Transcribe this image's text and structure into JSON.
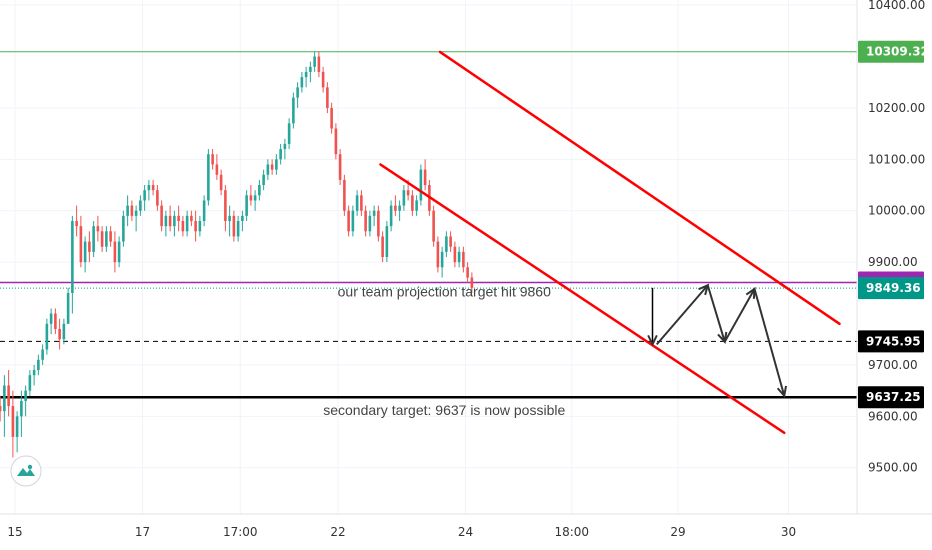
{
  "colors": {
    "up": "#26a69a",
    "down": "#ef5350",
    "channel": "#ff0000",
    "arrows": "#333333",
    "high_line": "#4caf50",
    "target_line": "#9c27b0",
    "last_price": "#009688",
    "grid": "#f0f3fa",
    "axis_text": "#333333"
  },
  "logo": {
    "icon": "tradingview-logo-icon"
  },
  "chart_data": {
    "type": "candlestick",
    "ylim": [
      9410,
      10410
    ],
    "y_ticks": [
      {
        "value": 10400,
        "label": "10400.00"
      },
      {
        "value": 10200,
        "label": "10200.00"
      },
      {
        "value": 10100,
        "label": "10100.00"
      },
      {
        "value": 10000,
        "label": "10000.00"
      },
      {
        "value": 9900,
        "label": "9900.00"
      },
      {
        "value": 9700,
        "label": "9700.00"
      },
      {
        "value": 9600,
        "label": "9600.00"
      },
      {
        "value": 9500,
        "label": "9500.00"
      }
    ],
    "x_ticks": [
      {
        "label": "15",
        "bar": 4
      },
      {
        "label": "17",
        "bar": 34
      },
      {
        "label": "17:00",
        "bar": 57
      },
      {
        "label": "22",
        "bar": 80
      },
      {
        "label": "24",
        "bar": 110
      },
      {
        "label": "18:00",
        "bar": 135
      },
      {
        "label": "29",
        "bar": 160
      },
      {
        "label": "30",
        "bar": 186
      }
    ],
    "price_levels": [
      {
        "value": 10309.32,
        "label": "10309.32",
        "style": "solid",
        "color": "#4caf50",
        "badge_color": "#4caf50"
      },
      {
        "value": 9860.38,
        "label": "9860.38",
        "style": "solid",
        "color": "#9c27b0",
        "badge_color": "#9c27b0"
      },
      {
        "value": 9849.36,
        "label": "9849.36",
        "style": "dotted",
        "color": "#009688",
        "badge_color": "#009688"
      },
      {
        "value": 9745.95,
        "label": "9745.95",
        "style": "dashed",
        "color": "#000000",
        "badge_color": "#000000"
      },
      {
        "value": 9637.25,
        "label": "9637.25",
        "style": "solid-thick",
        "color": "#000000",
        "badge_color": "#000000"
      }
    ],
    "channel_lines": [
      {
        "from": {
          "bar": 104,
          "value": 10309
        },
        "to": {
          "bar": 198,
          "value": 9780
        }
      },
      {
        "from": {
          "bar": 90,
          "value": 10090
        },
        "to": {
          "bar": 185,
          "value": 9568
        }
      }
    ],
    "projection_path": [
      {
        "bar": 155,
        "value": 9740
      },
      {
        "bar": 167,
        "value": 9855
      },
      {
        "bar": 171,
        "value": 9745
      },
      {
        "bar": 178,
        "value": 9848
      },
      {
        "bar": 185,
        "value": 9640
      }
    ],
    "drop_arrow": {
      "from": {
        "bar": 154,
        "value": 9850
      },
      "to": {
        "bar": 154,
        "value": 9740
      }
    },
    "annotations": [
      {
        "text": "our team projection target hit 9860",
        "bar": 105,
        "value": 9833
      },
      {
        "text": "secondary target: 9637 is now possible",
        "bar": 105,
        "value": 9603
      }
    ],
    "candles": [
      [
        9620,
        9640,
        9590,
        9610
      ],
      [
        9610,
        9680,
        9560,
        9660
      ],
      [
        9660,
        9690,
        9600,
        9620
      ],
      [
        9620,
        9650,
        9520,
        9560
      ],
      [
        9560,
        9610,
        9530,
        9600
      ],
      [
        9600,
        9650,
        9560,
        9630
      ],
      [
        9630,
        9660,
        9600,
        9650
      ],
      [
        9650,
        9690,
        9640,
        9680
      ],
      [
        9680,
        9700,
        9660,
        9690
      ],
      [
        9690,
        9720,
        9680,
        9710
      ],
      [
        9710,
        9740,
        9700,
        9730
      ],
      [
        9730,
        9790,
        9720,
        9780
      ],
      [
        9780,
        9810,
        9760,
        9800
      ],
      [
        9800,
        9810,
        9760,
        9770
      ],
      [
        9770,
        9790,
        9730,
        9750
      ],
      [
        9750,
        9790,
        9740,
        9780
      ],
      [
        9780,
        9850,
        9780,
        9840
      ],
      [
        9840,
        9990,
        9800,
        9980
      ],
      [
        9980,
        10010,
        9950,
        9970
      ],
      [
        9970,
        9990,
        9890,
        9900
      ],
      [
        9900,
        9950,
        9880,
        9940
      ],
      [
        9940,
        9960,
        9900,
        9920
      ],
      [
        9920,
        9980,
        9910,
        9970
      ],
      [
        9970,
        9990,
        9940,
        9960
      ],
      [
        9960,
        9970,
        9920,
        9930
      ],
      [
        9930,
        9970,
        9920,
        9960
      ],
      [
        9960,
        9970,
        9930,
        9940
      ],
      [
        9940,
        9960,
        9880,
        9900
      ],
      [
        9900,
        9950,
        9890,
        9940
      ],
      [
        9940,
        10000,
        9930,
        9990
      ],
      [
        9990,
        10030,
        9970,
        10010
      ],
      [
        10010,
        10020,
        9980,
        9990
      ],
      [
        9990,
        10010,
        9960,
        10000
      ],
      [
        10000,
        10030,
        9990,
        10020
      ],
      [
        10020,
        10050,
        10000,
        10040
      ],
      [
        10040,
        10060,
        10020,
        10050
      ],
      [
        10050,
        10060,
        10030,
        10040
      ],
      [
        10040,
        10050,
        10000,
        10010
      ],
      [
        10010,
        10020,
        9960,
        9970
      ],
      [
        9970,
        10000,
        9950,
        9990
      ],
      [
        9990,
        10010,
        9960,
        9970
      ],
      [
        9970,
        10000,
        9950,
        9990
      ],
      [
        9990,
        10010,
        9960,
        9980
      ],
      [
        9980,
        9990,
        9950,
        9960
      ],
      [
        9960,
        10000,
        9950,
        9990
      ],
      [
        9990,
        10000,
        9970,
        9980
      ],
      [
        9980,
        10000,
        9940,
        9960
      ],
      [
        9960,
        9990,
        9950,
        9980
      ],
      [
        9980,
        10030,
        9970,
        10020
      ],
      [
        10020,
        10120,
        10010,
        10110
      ],
      [
        10110,
        10120,
        10080,
        10090
      ],
      [
        10090,
        10110,
        10060,
        10070
      ],
      [
        10070,
        10080,
        10030,
        10040
      ],
      [
        10040,
        10050,
        9960,
        9980
      ],
      [
        9980,
        10010,
        9950,
        9990
      ],
      [
        9990,
        10000,
        9940,
        9950
      ],
      [
        9950,
        9990,
        9940,
        9980
      ],
      [
        9980,
        10000,
        9960,
        9990
      ],
      [
        9990,
        10040,
        9980,
        10030
      ],
      [
        10030,
        10050,
        10010,
        10020
      ],
      [
        10020,
        10040,
        10000,
        10030
      ],
      [
        10030,
        10060,
        10020,
        10050
      ],
      [
        10050,
        10080,
        10040,
        10070
      ],
      [
        10070,
        10100,
        10060,
        10090
      ],
      [
        10090,
        10100,
        10070,
        10080
      ],
      [
        10080,
        10110,
        10070,
        10100
      ],
      [
        10100,
        10130,
        10090,
        10120
      ],
      [
        10120,
        10140,
        10100,
        10130
      ],
      [
        10130,
        10180,
        10120,
        10170
      ],
      [
        10170,
        10230,
        10160,
        10220
      ],
      [
        10220,
        10250,
        10200,
        10240
      ],
      [
        10240,
        10270,
        10230,
        10260
      ],
      [
        10260,
        10280,
        10240,
        10270
      ],
      [
        10270,
        10290,
        10250,
        10280
      ],
      [
        10280,
        10310,
        10270,
        10300
      ],
      [
        10300,
        10310,
        10260,
        10270
      ],
      [
        10270,
        10280,
        10230,
        10240
      ],
      [
        10240,
        10250,
        10190,
        10200
      ],
      [
        10200,
        10210,
        10150,
        10160
      ],
      [
        10160,
        10170,
        10100,
        10110
      ],
      [
        10110,
        10120,
        10050,
        10060
      ],
      [
        10060,
        10070,
        9990,
        10000
      ],
      [
        10000,
        10010,
        9950,
        9960
      ],
      [
        9960,
        10010,
        9950,
        10000
      ],
      [
        10000,
        10040,
        9990,
        10030
      ],
      [
        10030,
        10040,
        9990,
        10000
      ],
      [
        10000,
        10010,
        9950,
        9960
      ],
      [
        9960,
        10000,
        9950,
        9990
      ],
      [
        9990,
        10010,
        9970,
        10000
      ],
      [
        10000,
        10010,
        9940,
        9950
      ],
      [
        9950,
        9960,
        9900,
        9910
      ],
      [
        9910,
        9980,
        9900,
        9970
      ],
      [
        9970,
        10020,
        9960,
        10010
      ],
      [
        10010,
        10030,
        9990,
        10000
      ],
      [
        10000,
        10020,
        9980,
        10010
      ],
      [
        10010,
        10050,
        10000,
        10040
      ],
      [
        10040,
        10060,
        10020,
        10030
      ],
      [
        10030,
        10040,
        9990,
        10000
      ],
      [
        10000,
        10030,
        9990,
        10020
      ],
      [
        10020,
        10090,
        10010,
        10080
      ],
      [
        10080,
        10100,
        10040,
        10050
      ],
      [
        10050,
        10060,
        9990,
        10000
      ],
      [
        10000,
        10010,
        9930,
        9940
      ],
      [
        9940,
        9950,
        9880,
        9890
      ],
      [
        9890,
        9930,
        9870,
        9920
      ],
      [
        9920,
        9960,
        9910,
        9950
      ],
      [
        9950,
        9960,
        9920,
        9930
      ],
      [
        9930,
        9940,
        9890,
        9900
      ],
      [
        9900,
        9930,
        9890,
        9920
      ],
      [
        9920,
        9930,
        9880,
        9890
      ],
      [
        9890,
        9900,
        9860,
        9870
      ],
      [
        9870,
        9880,
        9840,
        9850
      ]
    ]
  }
}
